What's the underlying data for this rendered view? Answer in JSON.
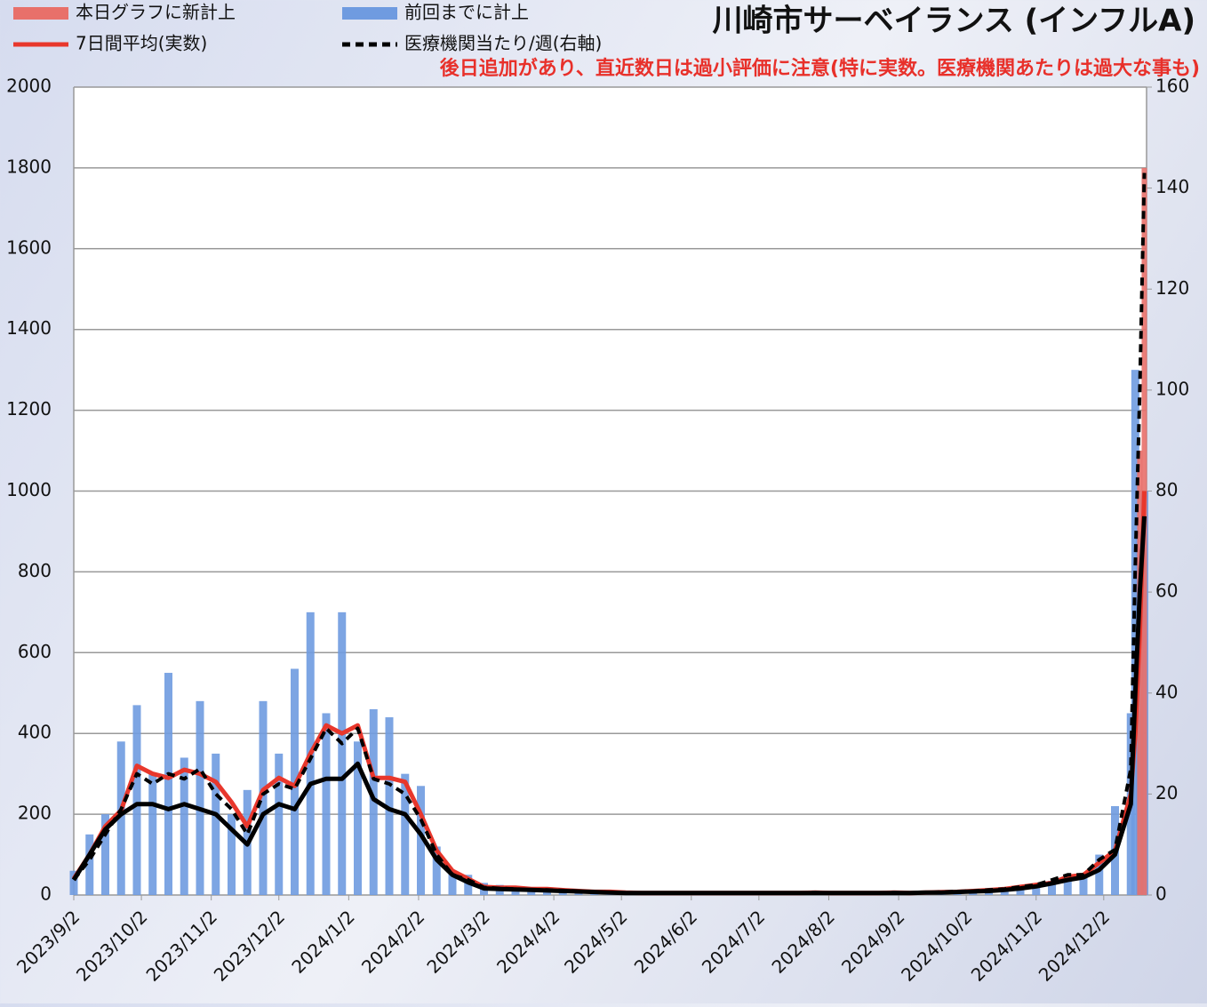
{
  "chart_data": {
    "type": "bar-line",
    "title": "川崎市サーベイランス (インフルA)",
    "subtitle": "後日追加があり、直近数日は過小評価に注意(特に実数。医療機関あたりは過大な事も)",
    "x": [
      "2023/9/2",
      "2023/9/9",
      "2023/9/16",
      "2023/9/23",
      "2023/9/30",
      "2023/10/7",
      "2023/10/14",
      "2023/10/21",
      "2023/10/28",
      "2023/11/4",
      "2023/11/11",
      "2023/11/18",
      "2023/11/25",
      "2023/12/2",
      "2023/12/9",
      "2023/12/16",
      "2023/12/23",
      "2023/12/30",
      "2024/1/6",
      "2024/1/13",
      "2024/1/20",
      "2024/1/27",
      "2024/2/3",
      "2024/2/10",
      "2024/2/17",
      "2024/2/24",
      "2024/3/2",
      "2024/3/9",
      "2024/3/16",
      "2024/3/23",
      "2024/3/30",
      "2024/4/6",
      "2024/4/13",
      "2024/4/20",
      "2024/4/27",
      "2024/5/4",
      "2024/5/11",
      "2024/5/18",
      "2024/5/25",
      "2024/6/1",
      "2024/6/8",
      "2024/6/15",
      "2024/6/22",
      "2024/6/29",
      "2024/7/6",
      "2024/7/13",
      "2024/7/20",
      "2024/7/27",
      "2024/8/3",
      "2024/8/10",
      "2024/8/17",
      "2024/8/24",
      "2024/8/31",
      "2024/9/7",
      "2024/9/14",
      "2024/9/21",
      "2024/9/28",
      "2024/10/5",
      "2024/10/12",
      "2024/10/19",
      "2024/10/26",
      "2024/11/2",
      "2024/11/9",
      "2024/11/16",
      "2024/11/23",
      "2024/11/30",
      "2024/12/7",
      "2024/12/14",
      "2024/12/16",
      "2024/12/18",
      "2024/12/20"
    ],
    "series": [
      {
        "name": "本日グラフに新計上",
        "kind": "bar",
        "color": "#e8706a",
        "x": [
          "2024/12/18",
          "2024/12/20"
        ],
        "values": [
          1100,
          1800
        ]
      },
      {
        "name": "前回までに計上",
        "kind": "bar",
        "color": "#6f9be0",
        "values": [
          60,
          150,
          200,
          380,
          470,
          300,
          550,
          340,
          480,
          350,
          200,
          260,
          480,
          350,
          560,
          700,
          450,
          700,
          380,
          460,
          440,
          300,
          270,
          120,
          60,
          50,
          30,
          25,
          20,
          18,
          15,
          15,
          12,
          10,
          8,
          8,
          6,
          6,
          5,
          5,
          6,
          5,
          5,
          5,
          6,
          5,
          6,
          5,
          6,
          5,
          5,
          6,
          5,
          6,
          6,
          8,
          10,
          12,
          14,
          18,
          22,
          28,
          35,
          50,
          55,
          100,
          220,
          450,
          1300,
          900,
          1000
        ]
      },
      {
        "name": "7日間平均(実数)",
        "kind": "line",
        "color": "#e8372c",
        "values": [
          40,
          100,
          170,
          210,
          320,
          300,
          290,
          310,
          300,
          280,
          230,
          170,
          260,
          290,
          270,
          350,
          420,
          400,
          420,
          290,
          290,
          280,
          200,
          110,
          60,
          40,
          20,
          18,
          18,
          15,
          15,
          12,
          10,
          8,
          8,
          6,
          5,
          5,
          5,
          5,
          5,
          5,
          5,
          5,
          5,
          5,
          5,
          6,
          5,
          5,
          5,
          5,
          6,
          5,
          6,
          7,
          8,
          10,
          12,
          15,
          20,
          25,
          30,
          45,
          50,
          80,
          110,
          250,
          400,
          650,
          1000
        ]
      },
      {
        "name": "医療機関当たり/週(右軸)",
        "kind": "line",
        "dashed": true,
        "axis": "y2",
        "color": "#000000",
        "values": [
          3,
          7,
          12,
          17,
          24,
          22,
          24,
          23,
          25,
          20,
          17,
          12,
          20,
          22,
          21,
          27,
          33,
          30,
          33,
          23,
          22,
          20,
          15,
          8,
          4,
          3,
          1.5,
          1.3,
          1.2,
          1,
          1,
          0.9,
          0.8,
          0.6,
          0.5,
          0.4,
          0.4,
          0.4,
          0.4,
          0.4,
          0.4,
          0.4,
          0.4,
          0.4,
          0.4,
          0.4,
          0.4,
          0.5,
          0.4,
          0.4,
          0.4,
          0.4,
          0.5,
          0.4,
          0.5,
          0.6,
          0.7,
          0.8,
          1,
          1.2,
          1.6,
          2,
          3,
          4,
          4,
          7,
          9,
          25,
          65,
          100,
          143
        ]
      },
      {
        "kind": "line",
        "axis": "y2",
        "color": "#000000",
        "values": [
          3,
          8,
          13,
          16,
          18,
          18,
          17,
          18,
          17,
          16,
          13,
          10,
          16,
          18,
          17,
          22,
          23,
          23,
          26,
          19,
          17,
          16,
          12,
          7,
          4,
          2.5,
          1.3,
          1.2,
          1.1,
          1,
          0.9,
          0.8,
          0.7,
          0.6,
          0.5,
          0.4,
          0.4,
          0.4,
          0.4,
          0.4,
          0.4,
          0.4,
          0.4,
          0.4,
          0.4,
          0.4,
          0.4,
          0.4,
          0.4,
          0.4,
          0.4,
          0.4,
          0.4,
          0.4,
          0.5,
          0.5,
          0.6,
          0.7,
          0.8,
          1,
          1.3,
          1.7,
          2.3,
          3,
          3.5,
          5,
          8,
          18,
          40,
          60,
          75
        ]
      }
    ],
    "xlim": [
      "2023/9/2",
      "2024/12/21"
    ],
    "xticks": [
      "2023/9/2",
      "2023/10/2",
      "2023/11/2",
      "2023/12/2",
      "2024/1/2",
      "2024/2/2",
      "2024/3/2",
      "2024/4/2",
      "2024/5/2",
      "2024/6/2",
      "2024/7/2",
      "2024/8/2",
      "2024/9/2",
      "2024/10/2",
      "2024/11/2",
      "2024/12/2"
    ],
    "ylim": [
      0,
      2000
    ],
    "yticks": [
      0,
      200,
      400,
      600,
      800,
      1000,
      1200,
      1400,
      1600,
      1800,
      2000
    ],
    "y2lim": [
      0,
      160
    ],
    "y2ticks": [
      0,
      20,
      40,
      60,
      80,
      100,
      120,
      140,
      160
    ],
    "grid": true
  }
}
